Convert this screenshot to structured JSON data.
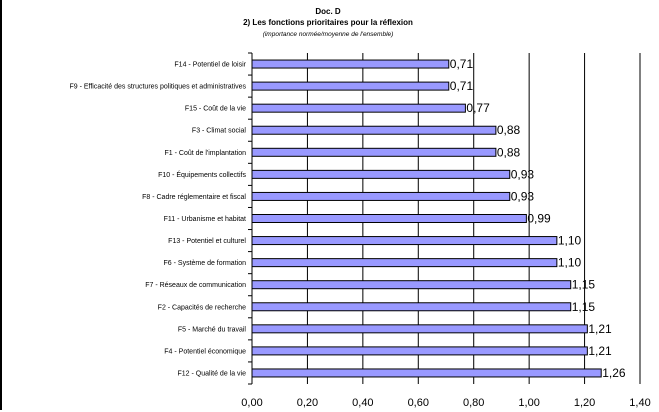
{
  "chart_data": {
    "type": "bar",
    "orientation": "horizontal",
    "title": "Doc. D",
    "subtitle": "2) Les fonctions prioritaires pour la réflexion",
    "note": "(importance normée/moyenne de l'ensemble)",
    "xlim": [
      0,
      1.4
    ],
    "xticks": [
      "0,00",
      "0,20",
      "0,40",
      "0,60",
      "0,80",
      "1,00",
      "1,20",
      "1,40"
    ],
    "grid": "vertical",
    "bar_color": "#9999ff",
    "categories": [
      "F14 - Potentiel de loisir",
      "F9 - Efficacité des structures politiques et administratives",
      "F15 - Coût de la vie",
      "F3 - Climat social",
      "F1 - Coût de l'implantation",
      "F10 - Équipements collectifs",
      "F8 - Cadre réglementaire et fiscal",
      "F11 - Urbanisme et habitat",
      "F13 - Potentiel et culturel",
      "F6 - Système de formation",
      "F7 - Réseaux de communication",
      "F2 - Capacités de recherche",
      "F5 - Marché du travail",
      "F4 - Potentiel économique",
      "F12 - Qualité de la vie"
    ],
    "values": [
      0.71,
      0.71,
      0.77,
      0.88,
      0.88,
      0.93,
      0.93,
      0.99,
      1.1,
      1.1,
      1.15,
      1.15,
      1.21,
      1.21,
      1.26
    ],
    "value_labels": [
      "0,71",
      "0,71",
      "0,77",
      "0,88",
      "0,88",
      "0,93",
      "0,93",
      "0,99",
      "1,10",
      "1,10",
      "1,15",
      "1,15",
      "1,21",
      "1,21",
      "1,26"
    ]
  }
}
